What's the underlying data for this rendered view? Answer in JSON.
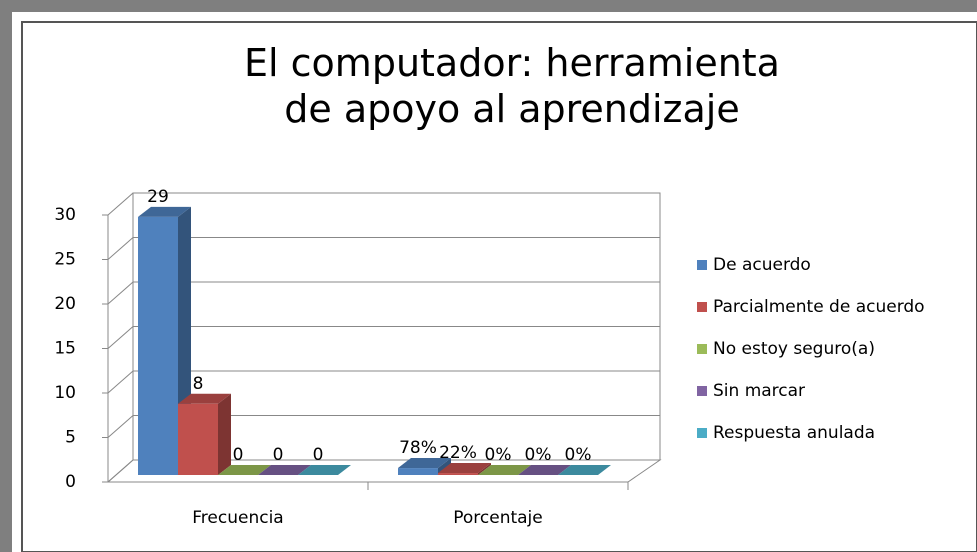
{
  "chart_data": {
    "type": "bar3d",
    "title": "El computador: herramienta de apoyo al aprendizaje",
    "categories": [
      "Frecuencia",
      "Porcentaje"
    ],
    "series": [
      {
        "name": "De acuerdo",
        "color": "#4f81bd",
        "values": [
          29,
          0.78
        ],
        "value_labels": [
          "29",
          "78%"
        ]
      },
      {
        "name": "Parcialmente de acuerdo",
        "color": "#c0504d",
        "values": [
          8,
          0.22
        ],
        "value_labels": [
          "8",
          "22%"
        ]
      },
      {
        "name": "No estoy seguro(a)",
        "color": "#9bbb59",
        "values": [
          0,
          0
        ],
        "value_labels": [
          "0",
          "0%"
        ]
      },
      {
        "name": "Sin marcar",
        "color": "#8064a2",
        "values": [
          0,
          0
        ],
        "value_labels": [
          "0",
          "0%"
        ]
      },
      {
        "name": "Respuesta anulada",
        "color": "#4bacc6",
        "values": [
          0,
          0
        ],
        "value_labels": [
          "0",
          "0%"
        ]
      }
    ],
    "ylim": [
      0,
      30
    ],
    "yticks": [
      0,
      5,
      10,
      15,
      20,
      25,
      30
    ],
    "grid": true,
    "legend": "right"
  }
}
